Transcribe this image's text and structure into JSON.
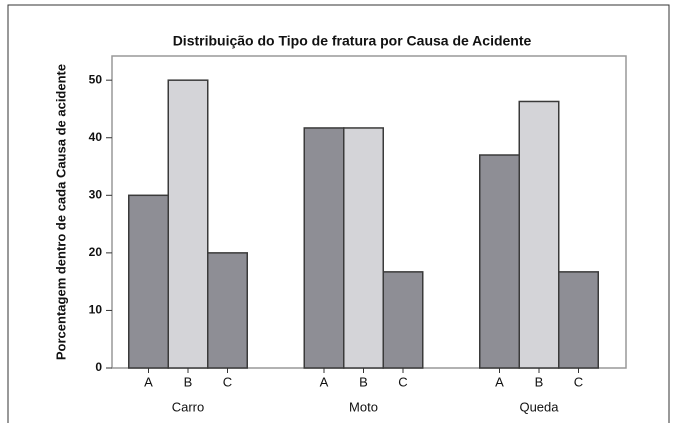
{
  "chart_data": {
    "type": "bar",
    "title": "Distribuição do Tipo de fratura por Causa de Acidente",
    "y_label": "Porcentagem dentro de cada Causa de acidente",
    "categories": [
      "Carro",
      "Moto",
      "Queda"
    ],
    "series": [
      {
        "name": "A",
        "color": "#8e8e95",
        "values": [
          30,
          41.7,
          37
        ]
      },
      {
        "name": "B",
        "color": "#d4d4d8",
        "values": [
          50,
          41.7,
          46.3
        ]
      },
      {
        "name": "C",
        "color": "#8e8e95",
        "values": [
          20,
          16.7,
          16.7
        ]
      }
    ],
    "ylim": [
      0,
      54.2
    ],
    "yticks": [
      0,
      10,
      20,
      30,
      40,
      50
    ],
    "grid": false
  }
}
